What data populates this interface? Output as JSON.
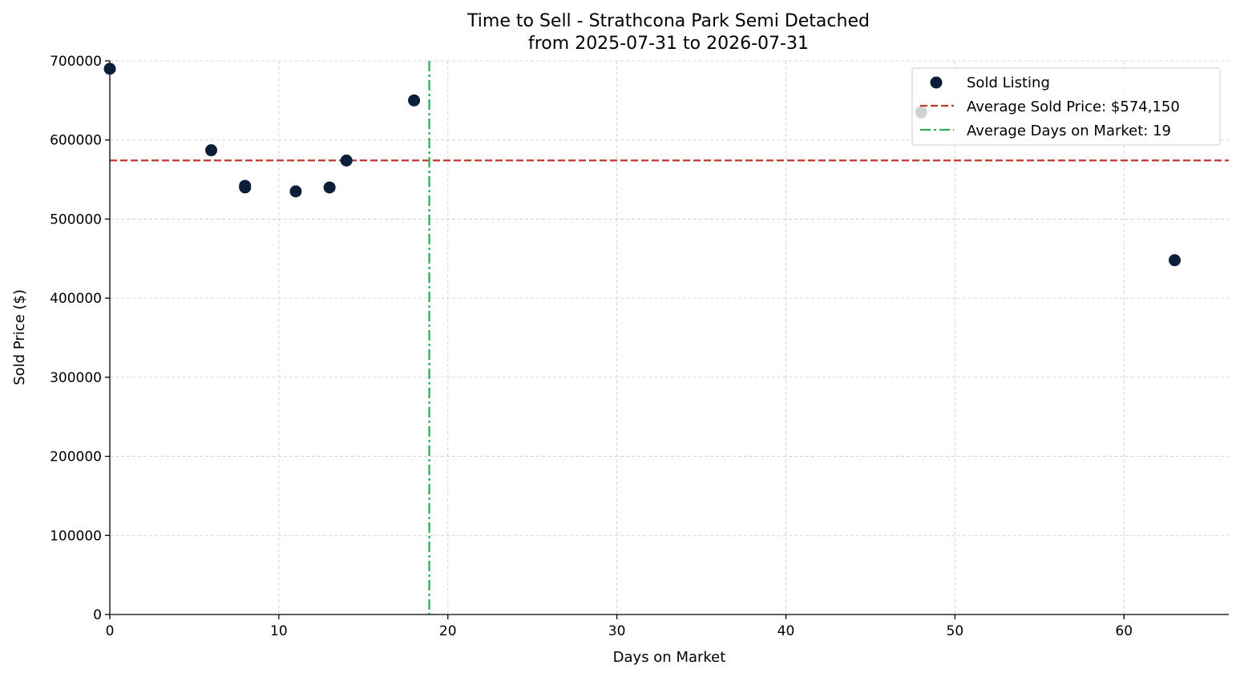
{
  "chart_data": {
    "type": "scatter",
    "title": "Time to Sell - Strathcona Park Semi Detached",
    "subtitle": "from 2025-07-31 to 2026-07-31",
    "xlabel": "Days on Market",
    "ylabel": "Sold Price ($)",
    "xlim": [
      0,
      66.2
    ],
    "ylim": [
      0,
      700000
    ],
    "x_ticks": [
      0,
      10,
      20,
      30,
      40,
      50,
      60
    ],
    "y_ticks": [
      0,
      100000,
      200000,
      300000,
      400000,
      500000,
      600000,
      700000
    ],
    "grid": true,
    "legend_position": "top-right",
    "series": [
      {
        "name": "Sold Listing",
        "color": "#0b1f3a",
        "points": [
          {
            "x": 0,
            "y": 690000
          },
          {
            "x": 6,
            "y": 587000
          },
          {
            "x": 8,
            "y": 542000
          },
          {
            "x": 8,
            "y": 540000
          },
          {
            "x": 11,
            "y": 535000
          },
          {
            "x": 13,
            "y": 540000
          },
          {
            "x": 14,
            "y": 574000
          },
          {
            "x": 18,
            "y": 650000
          },
          {
            "x": 48,
            "y": 635000
          },
          {
            "x": 63,
            "y": 448000
          }
        ]
      }
    ],
    "reference_lines": [
      {
        "name": "Average Sold Price: $574,150",
        "orientation": "horizontal",
        "value": 574150,
        "color": "#c0392b",
        "style": "dashed"
      },
      {
        "name": "Average Days on Market: 19",
        "orientation": "vertical",
        "value": 18.9,
        "color": "#27ae60",
        "style": "dashdot"
      }
    ]
  }
}
